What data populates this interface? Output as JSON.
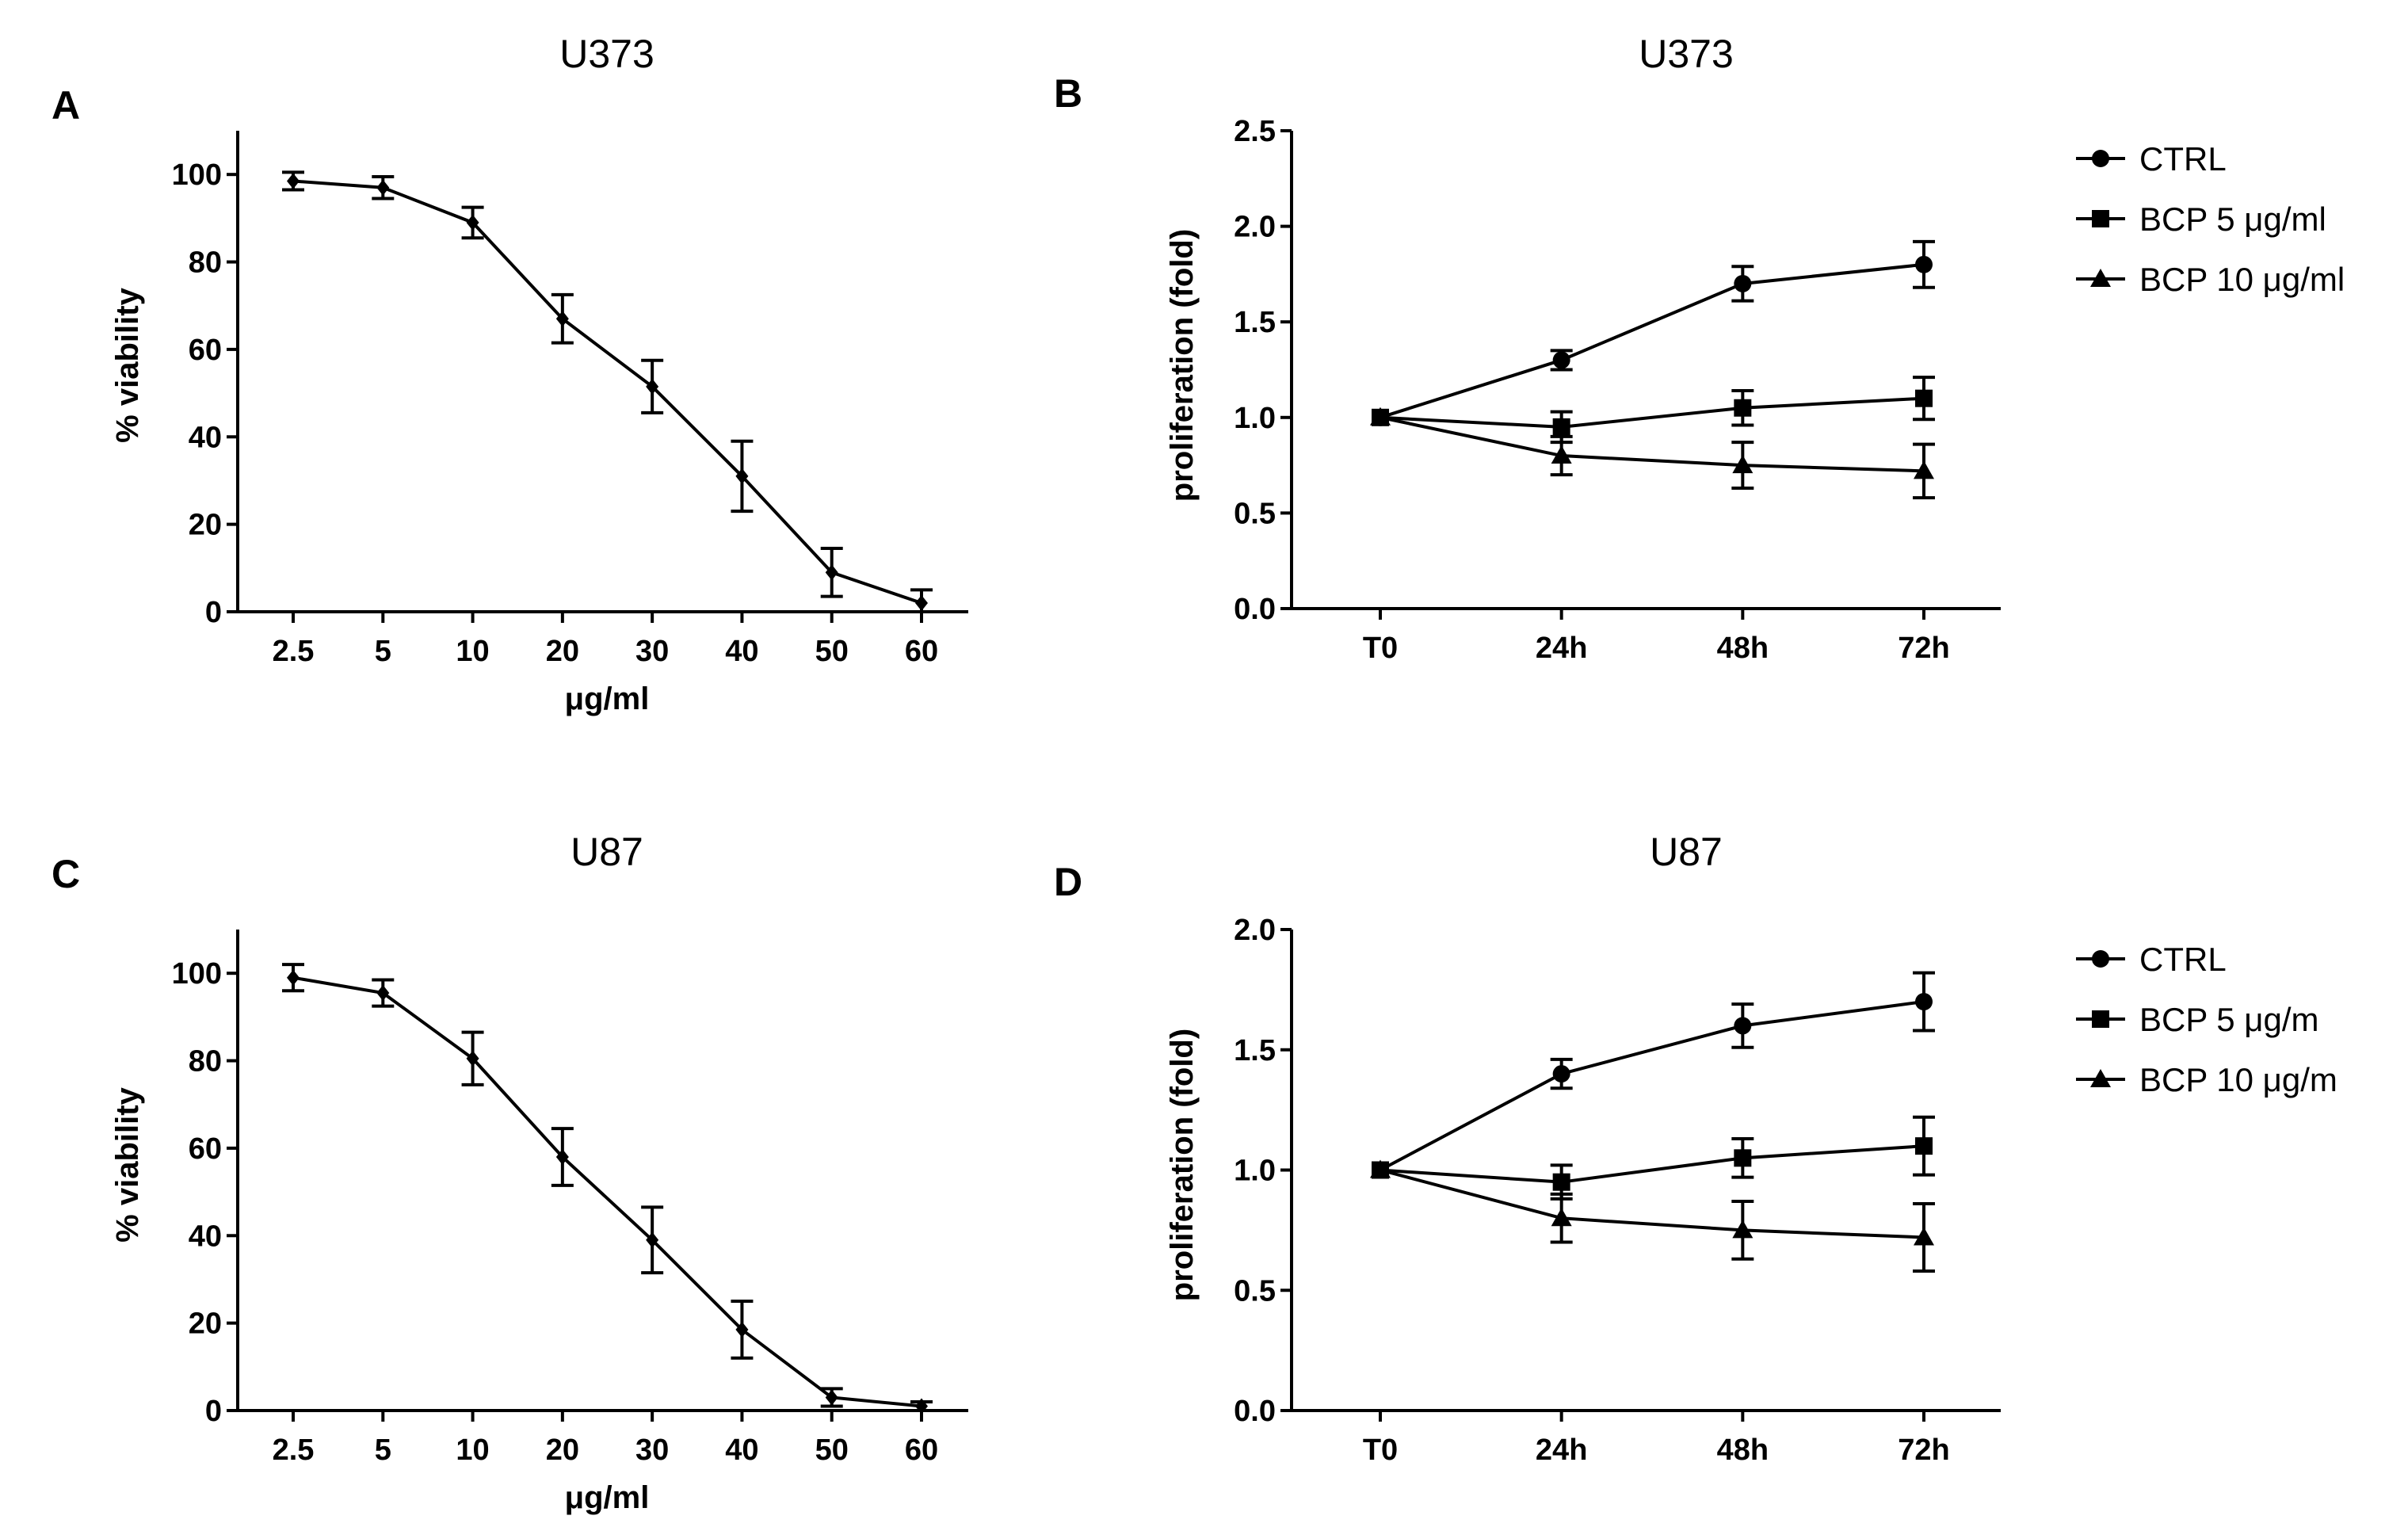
{
  "chart_data": [
    {
      "panel": "A",
      "type": "line",
      "title": "U373",
      "xlabel": "μg/ml",
      "ylabel": "% viability",
      "categories": [
        "2.5",
        "5",
        "10",
        "20",
        "30",
        "40",
        "50",
        "60"
      ],
      "ylim": [
        0,
        110
      ],
      "yticks": [
        0,
        20,
        40,
        60,
        80,
        100
      ],
      "series": [
        {
          "name": "viability",
          "marker": "diamond",
          "values": [
            98.5,
            97,
            89,
            67,
            51.5,
            31,
            9,
            2
          ],
          "errors": [
            2,
            2.5,
            3.5,
            5.5,
            6,
            8,
            5.5,
            3
          ]
        }
      ]
    },
    {
      "panel": "B",
      "type": "line",
      "title": "U373",
      "xlabel": "",
      "ylabel": "proliferation (fold)",
      "categories": [
        "T0",
        "24h",
        "48h",
        "72h"
      ],
      "ylim": [
        0,
        2.5
      ],
      "yticks": [
        "0.0",
        "0.5",
        "1.0",
        "1.5",
        "2.0",
        "2.5"
      ],
      "legend_position": "right",
      "series": [
        {
          "name": "CTRL",
          "marker": "circle",
          "values": [
            1.0,
            1.3,
            1.7,
            1.8
          ],
          "errors": [
            0,
            0.05,
            0.09,
            0.12
          ]
        },
        {
          "name": "BCP 5 μg/ml",
          "marker": "square",
          "values": [
            1.0,
            0.95,
            1.05,
            1.1
          ],
          "errors": [
            0,
            0.08,
            0.09,
            0.11
          ]
        },
        {
          "name": "BCP 10 μg/ml",
          "marker": "triangle",
          "values": [
            1.0,
            0.8,
            0.75,
            0.72
          ],
          "errors": [
            0,
            0.1,
            0.12,
            0.14
          ]
        }
      ]
    },
    {
      "panel": "C",
      "type": "line",
      "title": "U87",
      "xlabel": "μg/ml",
      "ylabel": "% viability",
      "categories": [
        "2.5",
        "5",
        "10",
        "20",
        "30",
        "40",
        "50",
        "60"
      ],
      "ylim": [
        0,
        110
      ],
      "yticks": [
        0,
        20,
        40,
        60,
        80,
        100
      ],
      "series": [
        {
          "name": "viability",
          "marker": "diamond",
          "values": [
            99,
            95.5,
            80.5,
            58,
            39,
            18.5,
            3,
            1
          ],
          "errors": [
            3,
            3,
            6,
            6.5,
            7.5,
            6.5,
            2,
            1
          ]
        }
      ]
    },
    {
      "panel": "D",
      "type": "line",
      "title": "U87",
      "xlabel": "",
      "ylabel": "proliferation (fold)",
      "categories": [
        "T0",
        "24h",
        "48h",
        "72h"
      ],
      "ylim": [
        0,
        2.0
      ],
      "yticks": [
        "0.0",
        "0.5",
        "1.0",
        "1.5",
        "2.0"
      ],
      "legend_position": "right",
      "series": [
        {
          "name": "CTRL",
          "marker": "circle",
          "values": [
            1.0,
            1.4,
            1.6,
            1.7
          ],
          "errors": [
            0,
            0.06,
            0.09,
            0.12
          ]
        },
        {
          "name": "BCP 5 μg/m",
          "marker": "square",
          "values": [
            1.0,
            0.95,
            1.05,
            1.1
          ],
          "errors": [
            0,
            0.07,
            0.08,
            0.12
          ]
        },
        {
          "name": "BCP 10 μg/m",
          "marker": "triangle",
          "values": [
            1.0,
            0.8,
            0.75,
            0.72
          ],
          "errors": [
            0,
            0.1,
            0.12,
            0.14
          ]
        }
      ]
    }
  ]
}
